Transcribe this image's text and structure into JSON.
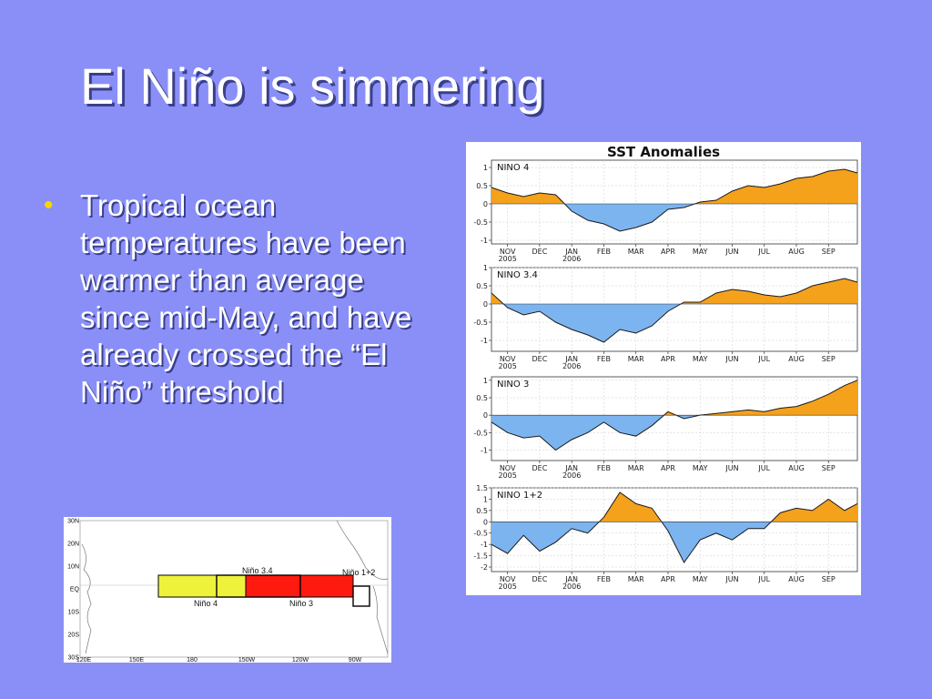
{
  "slide": {
    "title": "El Niño is simmering",
    "bullet": "Tropical ocean temperatures have been warmer than average since mid-May, and have already crossed the “El Niño” threshold"
  },
  "colors": {
    "background": "#8a8ff8",
    "title_text": "#ffffff",
    "bullet_mark": "#ffd400",
    "positive_anomaly": "#f4a11c",
    "negative_anomaly": "#7cb4f0",
    "nino4_region": "#eef23a",
    "nino3_region": "#ff1a10"
  },
  "chart_data": [
    {
      "type": "area",
      "title": "SST Anomalies",
      "x_months": [
        "NOV",
        "DEC",
        "JAN",
        "FEB",
        "MAR",
        "APR",
        "MAY",
        "JUN",
        "JUL",
        "AUG",
        "SEP"
      ],
      "x_year_labels": [
        {
          "month": "NOV",
          "year": "2005"
        },
        {
          "month": "JAN",
          "year": "2006"
        }
      ],
      "grid": true,
      "fill_rule": "positive orange, negative blue",
      "panels": [
        {
          "name": "NINO 4",
          "yticks": [
            "1",
            "0.5",
            "0",
            "-0.5",
            "-1"
          ],
          "ylim": [
            -1.1,
            1.2
          ],
          "x": [
            0,
            0.5,
            1,
            1.5,
            2,
            2.5,
            3,
            3.5,
            4,
            4.5,
            5,
            5.5,
            6,
            6.5,
            7,
            7.5,
            8,
            8.5,
            9,
            9.5,
            10,
            10.5,
            11,
            11.4
          ],
          "values": [
            0.45,
            0.3,
            0.2,
            0.3,
            0.25,
            -0.2,
            -0.45,
            -0.55,
            -0.75,
            -0.65,
            -0.5,
            -0.15,
            -0.1,
            0.05,
            0.1,
            0.35,
            0.5,
            0.45,
            0.55,
            0.7,
            0.75,
            0.9,
            0.95,
            0.85
          ]
        },
        {
          "name": "NINO 3.4",
          "yticks": [
            "1",
            "0.5",
            "0",
            "-0.5",
            "-1"
          ],
          "ylim": [
            -1.3,
            1.0
          ],
          "x": [
            0,
            0.5,
            1,
            1.5,
            2,
            2.5,
            3,
            3.5,
            4,
            4.5,
            5,
            5.5,
            6,
            6.5,
            7,
            7.5,
            8,
            8.5,
            9,
            9.5,
            10,
            10.5,
            11,
            11.4
          ],
          "values": [
            0.3,
            -0.1,
            -0.3,
            -0.2,
            -0.5,
            -0.7,
            -0.85,
            -1.05,
            -0.7,
            -0.8,
            -0.6,
            -0.2,
            0.05,
            0.05,
            0.3,
            0.4,
            0.35,
            0.25,
            0.2,
            0.3,
            0.5,
            0.6,
            0.7,
            0.6
          ]
        },
        {
          "name": "NINO 3",
          "yticks": [
            "1",
            "0.5",
            "0",
            "-0.5",
            "-1"
          ],
          "ylim": [
            -1.3,
            1.1
          ],
          "x": [
            0,
            0.5,
            1,
            1.5,
            2,
            2.5,
            3,
            3.5,
            4,
            4.5,
            5,
            5.5,
            6,
            6.5,
            7,
            7.5,
            8,
            8.5,
            9,
            9.5,
            10,
            10.5,
            11,
            11.4
          ],
          "values": [
            -0.2,
            -0.5,
            -0.65,
            -0.6,
            -1.0,
            -0.7,
            -0.5,
            -0.2,
            -0.5,
            -0.6,
            -0.3,
            0.1,
            -0.1,
            0.0,
            0.05,
            0.1,
            0.15,
            0.1,
            0.2,
            0.25,
            0.4,
            0.6,
            0.85,
            1.0
          ]
        },
        {
          "name": "NINO 1+2",
          "yticks": [
            "1.5",
            "1",
            "0.5",
            "0",
            "-0.5",
            "-1",
            "-1.5",
            "-2"
          ],
          "ylim": [
            -2.2,
            1.5
          ],
          "x": [
            0,
            0.5,
            1,
            1.5,
            2,
            2.5,
            3,
            3.5,
            4,
            4.5,
            5,
            5.5,
            6,
            6.5,
            7,
            7.5,
            8,
            8.5,
            9,
            9.5,
            10,
            10.5,
            11,
            11.4
          ],
          "values": [
            -1.0,
            -1.4,
            -0.6,
            -1.3,
            -0.9,
            -0.3,
            -0.5,
            0.2,
            1.3,
            0.8,
            0.6,
            -0.4,
            -1.8,
            -0.8,
            -0.5,
            -0.8,
            -0.3,
            -0.3,
            0.4,
            0.6,
            0.5,
            1.0,
            0.5,
            0.8
          ]
        }
      ]
    }
  ],
  "map": {
    "lat_labels": [
      "30N",
      "20N",
      "10N",
      "EQ",
      "10S",
      "20S",
      "30S"
    ],
    "lon_labels": [
      "120E",
      "150E",
      "180",
      "150W",
      "120W",
      "90W"
    ],
    "regions": [
      {
        "label": "Niño 3.4",
        "position": "above"
      },
      {
        "label": "Niño 1+2",
        "position": "above"
      },
      {
        "label": "Niño 4",
        "position": "below"
      },
      {
        "label": "Niño 3",
        "position": "below"
      }
    ]
  }
}
